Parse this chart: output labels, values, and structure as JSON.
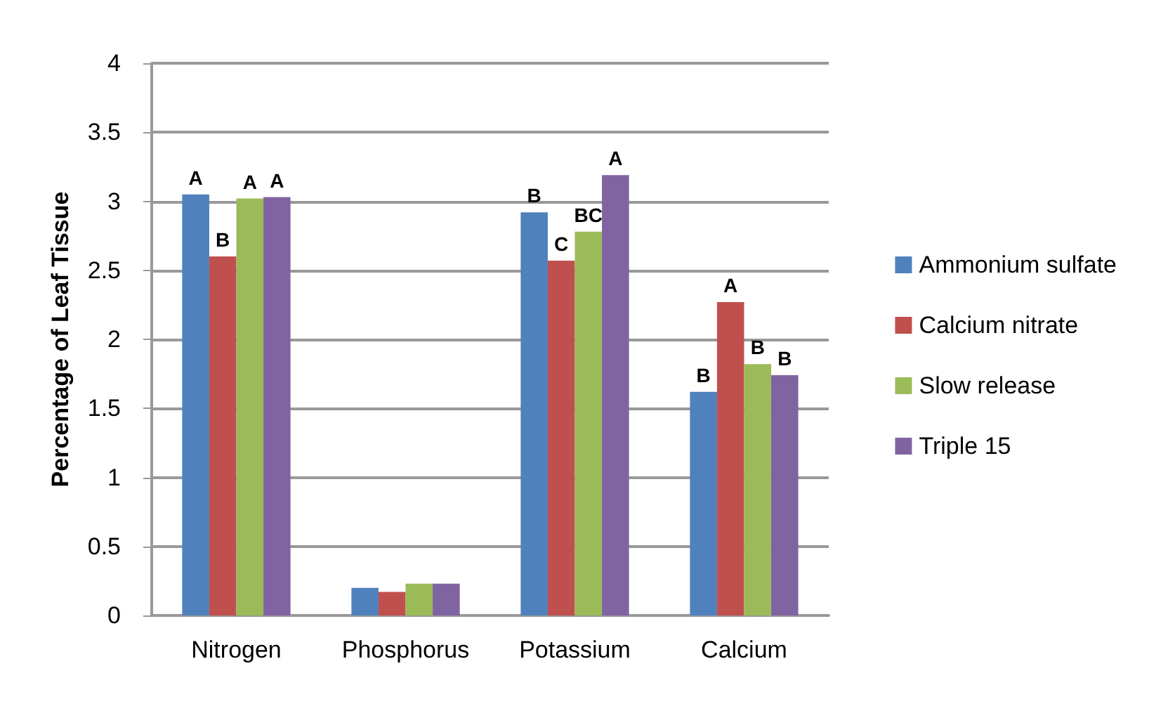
{
  "chart_data": {
    "type": "bar",
    "ylabel": "Percentage of Leaf Tissue",
    "categories": [
      "Nitrogen",
      "Phosphorus",
      "Potassium",
      "Calcium"
    ],
    "series": [
      {
        "name": "Ammonium sulfate",
        "color": "#4f81bd",
        "values": [
          3.05,
          0.2,
          2.92,
          1.62
        ],
        "value_labels": [
          "A",
          null,
          "B",
          "B"
        ]
      },
      {
        "name": "Calcium nitrate",
        "color": "#c0504d",
        "values": [
          2.6,
          0.17,
          2.57,
          2.27
        ],
        "value_labels": [
          "B",
          null,
          "C",
          "A"
        ]
      },
      {
        "name": "Slow release",
        "color": "#9bbb59",
        "values": [
          3.02,
          0.23,
          2.78,
          1.82
        ],
        "value_labels": [
          "A",
          null,
          "BC",
          "B"
        ]
      },
      {
        "name": "Triple 15",
        "color": "#8064a2",
        "values": [
          3.03,
          0.23,
          3.19,
          1.74
        ],
        "value_labels": [
          "A",
          null,
          "A",
          "B"
        ]
      }
    ],
    "ylim": [
      0,
      4
    ],
    "yticks": [
      0,
      0.5,
      1,
      1.5,
      2,
      2.5,
      3,
      3.5,
      4
    ],
    "grid": "y",
    "legend": "right"
  }
}
